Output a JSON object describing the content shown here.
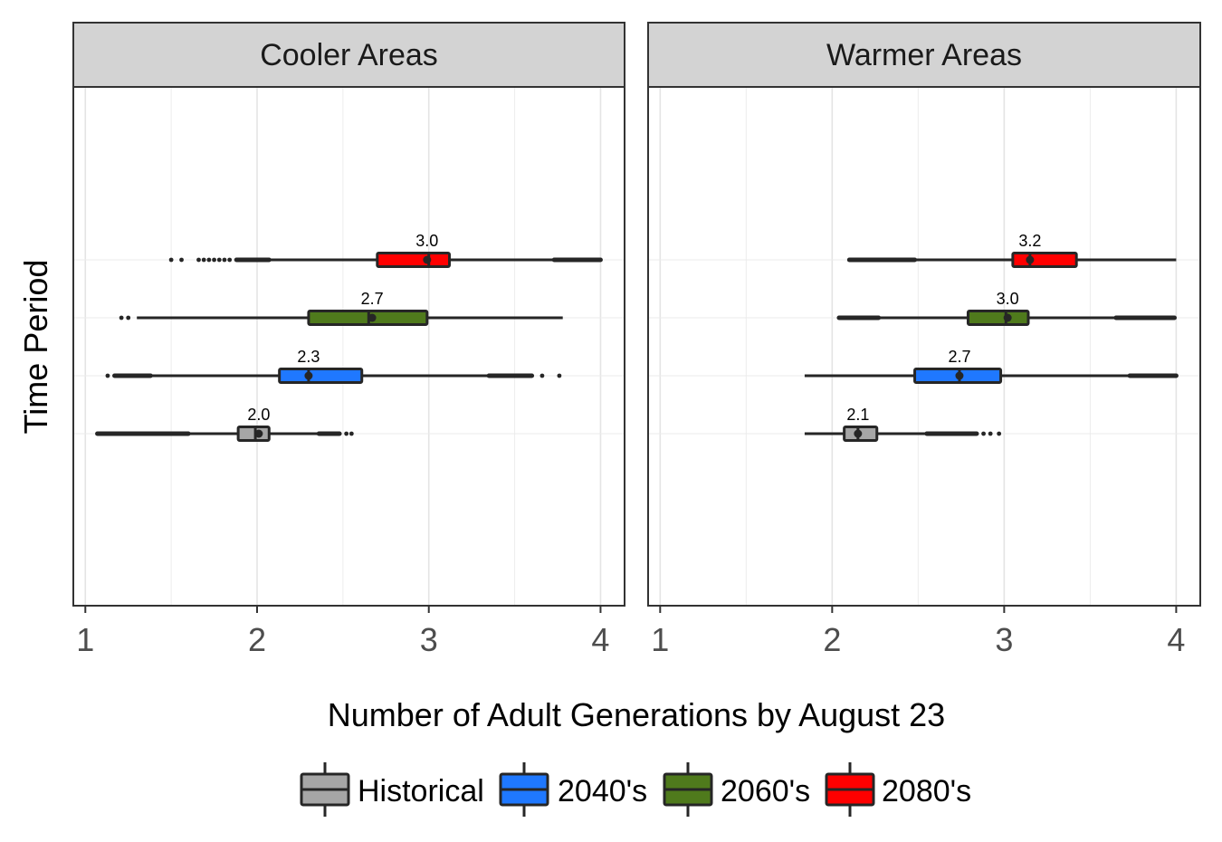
{
  "chart_data": {
    "type": "boxplot",
    "xlabel": "Number of Adult Generations by August 23",
    "ylabel": "Time Period",
    "xlim": [
      0.93,
      4.14
    ],
    "xticks": [
      1,
      2,
      3,
      4
    ],
    "xtick_labels": [
      "1",
      "2",
      "3",
      "4"
    ],
    "grid": true,
    "legend_position": "bottom",
    "series": [
      {
        "name": "Historical",
        "color": "#a6a6a6"
      },
      {
        "name": "2040's",
        "color": "#1f78ff"
      },
      {
        "name": "2060's",
        "color": "#4f7a1c"
      },
      {
        "name": "2080's",
        "color": "#ff0000"
      }
    ],
    "panels": [
      {
        "title": "Cooler Areas",
        "boxes": [
          {
            "series": "Historical",
            "whisker_low": 1.07,
            "q1": 1.89,
            "median": 1.99,
            "q3": 2.07,
            "whisker_high": 2.36,
            "mean": 2.01,
            "label": "2.0",
            "outliers_dense": [
              [
                1.07,
                1.6
              ],
              [
                2.36,
                2.48
              ]
            ],
            "outliers": [
              2.52,
              2.55
            ]
          },
          {
            "series": "2040's",
            "whisker_low": 1.17,
            "q1": 2.13,
            "median": 2.3,
            "q3": 2.61,
            "whisker_high": 3.35,
            "mean": 2.3,
            "label": "2.3",
            "outliers_dense": [
              [
                1.17,
                1.38
              ],
              [
                3.35,
                3.6
              ]
            ],
            "outliers": [
              1.13,
              3.66,
              3.76
            ]
          },
          {
            "series": "2060's",
            "whisker_low": 1.3,
            "q1": 2.3,
            "median": 2.65,
            "q3": 2.99,
            "whisker_high": 3.78,
            "mean": 2.67,
            "label": "2.7",
            "outliers_dense": [],
            "outliers": [
              1.21,
              1.25
            ]
          },
          {
            "series": "2080's",
            "whisker_low": 1.88,
            "q1": 2.7,
            "median": 3.0,
            "q3": 3.12,
            "whisker_high": 3.73,
            "mean": 2.99,
            "label": "3.0",
            "outliers_dense": [
              [
                1.88,
                2.07
              ],
              [
                3.73,
                4.0
              ]
            ],
            "outliers": [
              1.5,
              1.56,
              1.66,
              1.69,
              1.72,
              1.75,
              1.78,
              1.81,
              1.84
            ]
          }
        ]
      },
      {
        "title": "Warmer Areas",
        "boxes": [
          {
            "series": "Historical",
            "whisker_low": 1.84,
            "q1": 2.07,
            "median": 2.15,
            "q3": 2.26,
            "whisker_high": 2.55,
            "mean": 2.15,
            "label": "2.1",
            "outliers_dense": [
              [
                2.55,
                2.84
              ]
            ],
            "outliers": [
              2.88,
              2.92,
              2.97
            ]
          },
          {
            "series": "2040's",
            "whisker_low": 1.84,
            "q1": 2.48,
            "median": 2.74,
            "q3": 2.98,
            "whisker_high": 3.73,
            "mean": 2.74,
            "label": "2.7",
            "outliers_dense": [
              [
                3.73,
                4.0
              ]
            ],
            "outliers": []
          },
          {
            "series": "2060's",
            "whisker_low": 2.27,
            "q1": 2.79,
            "median": 3.01,
            "q3": 3.14,
            "whisker_high": 3.65,
            "mean": 3.02,
            "label": "3.0",
            "outliers_dense": [
              [
                2.04,
                2.27
              ],
              [
                3.65,
                3.99
              ]
            ],
            "outliers": []
          },
          {
            "series": "2080's",
            "whisker_low": 2.48,
            "q1": 3.05,
            "median": 3.15,
            "q3": 3.42,
            "whisker_high": 4.0,
            "mean": 3.15,
            "label": "3.2",
            "outliers_dense": [
              [
                2.1,
                2.48
              ]
            ],
            "outliers": []
          }
        ]
      }
    ]
  }
}
